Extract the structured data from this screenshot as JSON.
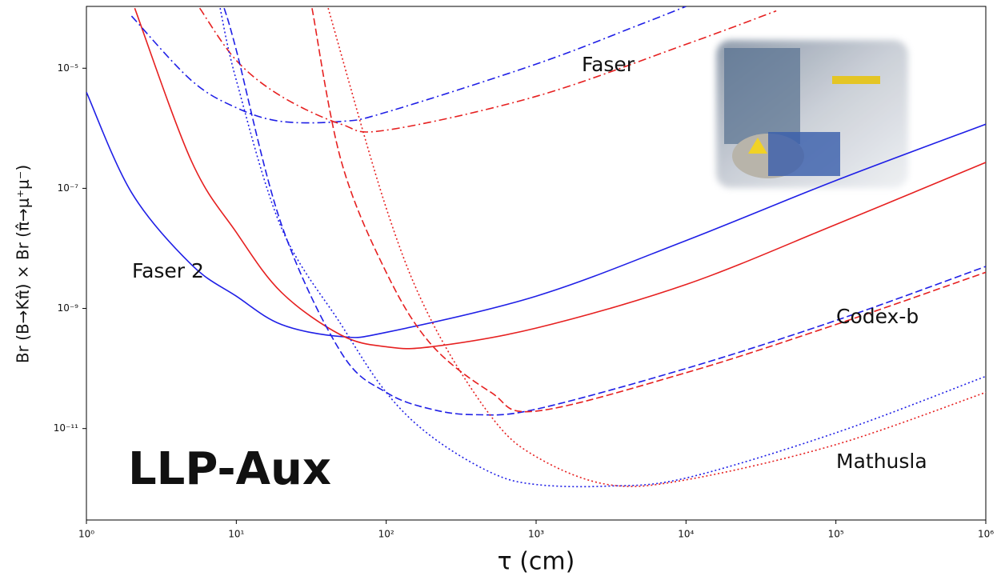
{
  "chart_data": {
    "type": "line",
    "xlabel": "τ (cm)",
    "ylabel": "Br (B→Kπ̂) × Br (π̂→μ⁺μ⁻)",
    "log_x": true,
    "log_y": true,
    "xlim": [
      1,
      1000000
    ],
    "ylim": [
      3e-13,
      0.000107
    ],
    "xticks": [
      {
        "value": 1,
        "label": "10⁰"
      },
      {
        "value": 10,
        "label": "10¹"
      },
      {
        "value": 100,
        "label": "10²"
      },
      {
        "value": 1000,
        "label": "10³"
      },
      {
        "value": 10000,
        "label": "10⁴"
      },
      {
        "value": 100000,
        "label": "10⁵"
      },
      {
        "value": 1000000,
        "label": "10⁶"
      }
    ],
    "yticks": [
      {
        "value": 1e-11,
        "label": "10⁻¹¹"
      },
      {
        "value": 1e-09,
        "label": "10⁻⁹"
      },
      {
        "value": 1e-07,
        "label": "10⁻⁷"
      },
      {
        "value": 1e-05,
        "label": "10⁻⁵"
      }
    ],
    "annotations": [
      "Faser",
      "Faser 2",
      "Codex-b",
      "Mathusla"
    ],
    "watermark": "LLP-Aux",
    "series": [
      {
        "color": "#1f1fe6",
        "dash": "solid",
        "x": [
          1,
          2,
          5,
          10,
          20,
          50,
          100,
          1000,
          10000,
          100000,
          1000000
        ],
        "values": [
          4e-06,
          8.5e-08,
          5.4e-09,
          1.6e-09,
          5.4e-10,
          3.4e-10,
          4e-10,
          1.6e-09,
          1.35e-08,
          1.35e-07,
          1.17e-06
        ]
      },
      {
        "color": "#e62020",
        "dash": "solid",
        "x": [
          2.1,
          5,
          10,
          20,
          50,
          100,
          200,
          1000,
          10000,
          100000,
          1000000
        ],
        "values": [
          0.0001,
          2.9e-07,
          1.85e-08,
          1.85e-09,
          3.6e-10,
          2.3e-10,
          2.3e-10,
          4.7e-10,
          2.5e-09,
          2.5e-08,
          2.7e-07
        ]
      },
      {
        "color": "#1f1fe6",
        "dash": "dashdot",
        "x": [
          2,
          5,
          10,
          20,
          50,
          100,
          1000,
          5000,
          10000
        ],
        "values": [
          7.4e-05,
          6.3e-06,
          2.2e-06,
          1.3e-06,
          1.3e-06,
          1.85e-06,
          1.17e-05,
          5.4e-05,
          0.000107
        ]
      },
      {
        "color": "#e62020",
        "dash": "dashdot",
        "x": [
          5.7,
          10,
          20,
          50,
          100,
          1000,
          10000,
          40000
        ],
        "values": [
          0.0001,
          1.35e-05,
          3.4e-06,
          1.17e-06,
          9.3e-07,
          3.4e-06,
          2.5e-05,
          9e-05
        ]
      },
      {
        "color": "#1f1fe6",
        "dash": "dashed",
        "x": [
          8.3,
          10,
          20,
          50,
          100,
          200,
          400,
          1000,
          10000,
          100000,
          1000000
        ],
        "values": [
          0.0001,
          2e-05,
          2.5e-08,
          1.85e-10,
          4e-11,
          2.1e-11,
          1.7e-11,
          2.1e-11,
          1e-10,
          6.3e-10,
          5e-09
        ]
      },
      {
        "color": "#e62020",
        "dash": "dashed",
        "x": [
          32,
          50,
          100,
          200,
          500,
          1000,
          10000,
          100000,
          1000000
        ],
        "values": [
          0.0001,
          2.9e-07,
          4e-09,
          2.5e-10,
          4e-11,
          1.95e-11,
          8.5e-11,
          5.4e-10,
          4e-09
        ]
      },
      {
        "color": "#1f1fe6",
        "dash": "dotted",
        "x": [
          7.8,
          10,
          20,
          50,
          100,
          200,
          500,
          1000,
          3000,
          10000,
          100000,
          1000000
        ],
        "values": [
          0.0001,
          6.3e-06,
          2.2e-08,
          5.4e-10,
          4e-11,
          7.4e-12,
          1.85e-12,
          1.17e-12,
          1.1e-12,
          1.5e-12,
          8.5e-12,
          7.4e-11
        ]
      },
      {
        "color": "#e62020",
        "dash": "dotted",
        "x": [
          41,
          100,
          200,
          500,
          1000,
          3000,
          10000,
          100000,
          1000000
        ],
        "values": [
          0.0001,
          4.7e-08,
          6.3e-10,
          1.6e-11,
          3.4e-12,
          1.17e-12,
          1.4e-12,
          5.4e-12,
          4e-11
        ]
      }
    ]
  }
}
